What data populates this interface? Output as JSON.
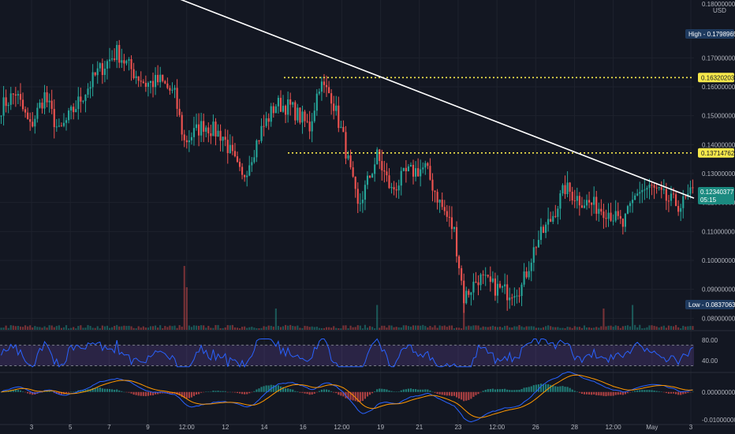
{
  "chart_data": {
    "type": "candlestick",
    "currency_label": "USD",
    "price_axis": {
      "range": [
        0.076,
        0.19
      ],
      "ticks": [
        "0.08000000",
        "0.09000000",
        "0.10000000",
        "0.11000000",
        "0.12000000",
        "0.13000000",
        "0.14000000",
        "0.15000000",
        "0.16000000",
        "0.17000000"
      ],
      "top_tick": "0.18000000"
    },
    "time_axis": {
      "ticks": [
        "3",
        "5",
        "7",
        "9",
        "12:00",
        "12",
        "14",
        "16",
        "12:00",
        "19",
        "21",
        "23",
        "12:00",
        "26",
        "28",
        "12:00",
        "May",
        "3"
      ]
    },
    "high": {
      "label": "High",
      "value": "0.17989657"
    },
    "low": {
      "label": "Low",
      "value": "0.08370630"
    },
    "current": {
      "value": "0.12340377",
      "countdown": "05:15"
    },
    "horizontal_levels": [
      {
        "value": "0.16320203",
        "price": 0.1632,
        "color": "#f7e94b"
      },
      {
        "value": "0.13714762",
        "price": 0.13715,
        "color": "#f7e94b"
      }
    ],
    "trendline": {
      "start_price": 0.198,
      "end_price": 0.1215,
      "color": "#ffffff"
    },
    "close_anchors": [
      [
        0,
        0.153
      ],
      [
        6,
        0.158
      ],
      [
        12,
        0.146
      ],
      [
        18,
        0.157
      ],
      [
        24,
        0.144
      ],
      [
        30,
        0.152
      ],
      [
        40,
        0.165
      ],
      [
        48,
        0.172
      ],
      [
        55,
        0.165
      ],
      [
        60,
        0.161
      ],
      [
        66,
        0.162
      ],
      [
        72,
        0.157
      ],
      [
        76,
        0.141
      ],
      [
        84,
        0.147
      ],
      [
        92,
        0.143
      ],
      [
        100,
        0.128
      ],
      [
        108,
        0.145
      ],
      [
        114,
        0.154
      ],
      [
        120,
        0.153
      ],
      [
        128,
        0.146
      ],
      [
        132,
        0.161
      ],
      [
        137,
        0.157
      ],
      [
        142,
        0.142
      ],
      [
        148,
        0.118
      ],
      [
        156,
        0.136
      ],
      [
        162,
        0.124
      ],
      [
        168,
        0.13
      ],
      [
        176,
        0.132
      ],
      [
        182,
        0.12
      ],
      [
        188,
        0.11
      ],
      [
        192,
        0.087
      ],
      [
        198,
        0.094
      ],
      [
        204,
        0.091
      ],
      [
        210,
        0.089
      ],
      [
        216,
        0.091
      ],
      [
        222,
        0.106
      ],
      [
        228,
        0.114
      ],
      [
        234,
        0.125
      ],
      [
        240,
        0.121
      ],
      [
        246,
        0.119
      ],
      [
        252,
        0.117
      ],
      [
        258,
        0.112
      ],
      [
        264,
        0.124
      ],
      [
        270,
        0.125
      ],
      [
        276,
        0.121
      ],
      [
        282,
        0.119
      ],
      [
        287,
        0.1234
      ]
    ],
    "volume_spikes": [
      [
        76,
        0.9
      ],
      [
        77,
        0.6
      ],
      [
        114,
        0.3
      ],
      [
        156,
        0.35
      ],
      [
        192,
        0.5
      ],
      [
        250,
        0.3
      ],
      [
        262,
        0.35
      ]
    ],
    "rsi": {
      "ticks": [
        "80.00",
        "40.00"
      ],
      "range": [
        20,
        95
      ],
      "upper_band": 70,
      "lower_band": 30,
      "band_fill": "#7e57c2",
      "line_color": "#2962ff"
    },
    "macd": {
      "ticks": [
        "0.00000000",
        "-0.01000000"
      ],
      "range": [
        -0.0115,
        0.0065
      ],
      "macd_color": "#2962ff",
      "signal_color": "#ff9800",
      "hist_up": "#26a69a",
      "hist_down": "#ef5350"
    },
    "colors": {
      "background": "#131722",
      "grid": "#1e222d",
      "up": "#26a69a",
      "down": "#ef5350",
      "high_badge": "#1e3a5f",
      "current_badge": "#1b8a80"
    }
  }
}
